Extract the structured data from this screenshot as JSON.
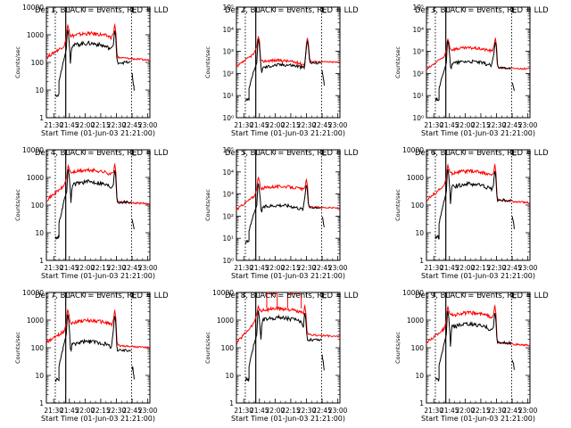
{
  "colors": {
    "events": "#000000",
    "lld": "#ff0000",
    "background": "#ffffff"
  },
  "common": {
    "xlabel": "Start Time (01-Jun-03 21:21:00)",
    "ylabel": "Counts/sec",
    "x_tick_labels": [
      "21:30",
      "21:45",
      "22:00",
      "22:15",
      "22:30",
      "22:45",
      "23:00"
    ],
    "x_ticks_min": [
      570,
      585,
      600,
      615,
      630,
      645,
      660
    ],
    "xlim_min": [
      563,
      662
    ],
    "dotted_vlines_min": [
      571.5,
      644.5
    ],
    "solid_vline_min": 581.5
  },
  "chart_data": [
    {
      "type": "line",
      "title": "Det 1, BLACK = Events, RED = LLD",
      "ylim": [
        1,
        10000
      ],
      "yscale": "log",
      "ytick_labels": [
        "1",
        "10",
        "100",
        "1000",
        "10000"
      ],
      "yticks": [
        1,
        10,
        100,
        1000,
        10000
      ],
      "peak1_min": 583.5,
      "peak2_min": 628.5,
      "events": {
        "pre": [
          7,
          150
        ],
        "peak1": 1500,
        "dip": 90,
        "base": [
          400,
          300
        ],
        "peak2": 1400,
        "post": 100,
        "tail": [
          40,
          10
        ]
      },
      "lld": {
        "pre": [
          150,
          400
        ],
        "peak1": 2200,
        "base": [
          900,
          800
        ],
        "peak2": 2300,
        "post": [
          150,
          120
        ]
      }
    },
    {
      "type": "line",
      "title": "Det 2, BLACK = Events, RED = LLD",
      "ylim": [
        1,
        100000
      ],
      "yscale": "log",
      "ytick_labels": [
        "10⁰",
        "10¹",
        "10²",
        "10³",
        "10⁴",
        "10⁵"
      ],
      "yticks": [
        1,
        10,
        100,
        1000,
        10000,
        100000
      ],
      "peak1_min": 584,
      "peak2_min": 631,
      "events": {
        "pre": [
          7,
          150
        ],
        "peak1": 3500,
        "dip": 200,
        "base": [
          180,
          180
        ],
        "peak2": 3000,
        "post": 300,
        "tail": [
          150,
          30
        ]
      },
      "lld": {
        "pre": [
          200,
          800
        ],
        "peak1": 4500,
        "base": [
          350,
          250
        ],
        "peak2": 3800,
        "post": [
          350,
          320
        ]
      }
    },
    {
      "type": "line",
      "title": "Det 3, BLACK = Events, RED = LLD",
      "ylim": [
        1,
        100000
      ],
      "yscale": "log",
      "ytick_labels": [
        "10⁰",
        "10¹",
        "10²",
        "10³",
        "10⁴",
        "10⁵"
      ],
      "yticks": [
        1,
        10,
        100,
        1000,
        10000,
        100000
      ],
      "peak1_min": 583.5,
      "peak2_min": 629,
      "events": {
        "pre": [
          7,
          150
        ],
        "peak1": 3000,
        "dip": 200,
        "base": [
          280,
          220
        ],
        "peak2": 2600,
        "post": 180,
        "tail": [
          40,
          15
        ]
      },
      "lld": {
        "pre": [
          150,
          600
        ],
        "peak1": 3500,
        "base": [
          1200,
          1000
        ],
        "peak2": 3800,
        "post": [
          180,
          160
        ]
      }
    },
    {
      "type": "line",
      "title": "Det 4, BLACK = Events, RED = LLD",
      "ylim": [
        1,
        10000
      ],
      "yscale": "log",
      "ytick_labels": [
        "1",
        "10",
        "100",
        "1000",
        "10000"
      ],
      "yticks": [
        1,
        10,
        100,
        1000,
        10000
      ],
      "peak1_min": 584,
      "peak2_min": 628.5,
      "events": {
        "pre": [
          7,
          150
        ],
        "peak1": 2000,
        "dip": 120,
        "base": [
          550,
          450
        ],
        "peak2": 1800,
        "post": 130,
        "tail": [
          30,
          15
        ]
      },
      "lld": {
        "pre": [
          150,
          500
        ],
        "peak1": 2700,
        "base": [
          1500,
          1300
        ],
        "peak2": 3000,
        "post": [
          130,
          110
        ]
      }
    },
    {
      "type": "line",
      "title": "Det 5, BLACK = Events, RED = LLD",
      "ylim": [
        1,
        100000
      ],
      "yscale": "log",
      "ytick_labels": [
        "10⁰",
        "10¹",
        "10²",
        "10³",
        "10⁴",
        "10⁵"
      ],
      "yticks": [
        1,
        10,
        100,
        1000,
        10000,
        100000
      ],
      "peak1_min": 584,
      "peak2_min": 630,
      "events": {
        "pre": [
          7,
          150
        ],
        "peak1": 3000,
        "dip": 200,
        "base": [
          250,
          200
        ],
        "peak2": 2500,
        "post": 250,
        "tail": [
          100,
          30
        ]
      },
      "lld": {
        "pre": [
          200,
          800
        ],
        "peak1": 5500,
        "base": [
          1800,
          1600
        ],
        "peak2": 4500,
        "post": [
          260,
          230
        ]
      }
    },
    {
      "type": "line",
      "title": "Det 6, BLACK = Events, RED = LLD",
      "ylim": [
        1,
        10000
      ],
      "yscale": "log",
      "ytick_labels": [
        "1",
        "10",
        "100",
        "1000",
        "10000"
      ],
      "yticks": [
        1,
        10,
        100,
        1000,
        10000
      ],
      "peak1_min": 583.5,
      "peak2_min": 628.5,
      "events": {
        "pre": [
          7,
          150
        ],
        "peak1": 2000,
        "dip": 110,
        "base": [
          450,
          380
        ],
        "peak2": 1700,
        "post": 150,
        "tail": [
          40,
          15
        ]
      },
      "lld": {
        "pre": [
          150,
          500
        ],
        "peak1": 2800,
        "base": [
          1400,
          1200
        ],
        "peak2": 2900,
        "post": [
          150,
          120
        ]
      }
    },
    {
      "type": "line",
      "title": "Det 7, BLACK = Events, RED = LLD",
      "ylim": [
        1,
        10000
      ],
      "yscale": "log",
      "ytick_labels": [
        "1",
        "10",
        "100",
        "1000",
        "10000"
      ],
      "yticks": [
        1,
        10,
        100,
        1000,
        10000
      ],
      "peak1_min": 583.5,
      "peak2_min": 628.5,
      "events": {
        "pre": [
          7,
          150
        ],
        "peak1": 1600,
        "dip": 90,
        "base": [
          130,
          110
        ],
        "peak2": 1400,
        "post": 80,
        "tail": [
          25,
          8
        ]
      },
      "lld": {
        "pre": [
          150,
          400
        ],
        "peak1": 2300,
        "base": [
          800,
          700
        ],
        "peak2": 2200,
        "post": [
          120,
          100
        ]
      }
    },
    {
      "type": "line",
      "title": "Det 8, BLACK = Events, RED = LLD",
      "ylim": [
        1,
        10000
      ],
      "yscale": "log",
      "ytick_labels": [
        "1",
        "10",
        "100",
        "1000",
        "10000"
      ],
      "yticks": [
        1,
        10,
        100,
        1000,
        10000
      ],
      "peak1_min": 584,
      "peak2_min": 628.5,
      "events": {
        "pre": [
          7,
          150
        ],
        "peak1": 2200,
        "dip": 200,
        "base": [
          1000,
          800
        ],
        "peak2": 1800,
        "post": 200,
        "tail": [
          60,
          15
        ]
      },
      "lld": {
        "pre": [
          150,
          800
        ],
        "peak1": 3200,
        "base": [
          2200,
          1800
        ],
        "peak2": 3300,
        "post": [
          300,
          250
        ]
      },
      "lld_saturation": [
        [
          592,
          602
        ],
        [
          612,
          625
        ]
      ]
    },
    {
      "type": "line",
      "title": "Det 9, BLACK = Events, RED = LLD",
      "ylim": [
        1,
        10000
      ],
      "yscale": "log",
      "ytick_labels": [
        "1",
        "10",
        "100",
        "1000",
        "10000"
      ],
      "yticks": [
        1,
        10,
        100,
        1000,
        10000
      ],
      "peak1_min": 583.5,
      "peak2_min": 628.5,
      "events": {
        "pre": [
          7,
          150
        ],
        "peak1": 2100,
        "dip": 110,
        "base": [
          550,
          450
        ],
        "peak2": 1800,
        "post": 150,
        "tail": [
          40,
          18
        ]
      },
      "lld": {
        "pre": [
          150,
          500
        ],
        "peak1": 3000,
        "base": [
          1500,
          1300
        ],
        "peak2": 3300,
        "post": [
          150,
          120
        ]
      }
    }
  ]
}
